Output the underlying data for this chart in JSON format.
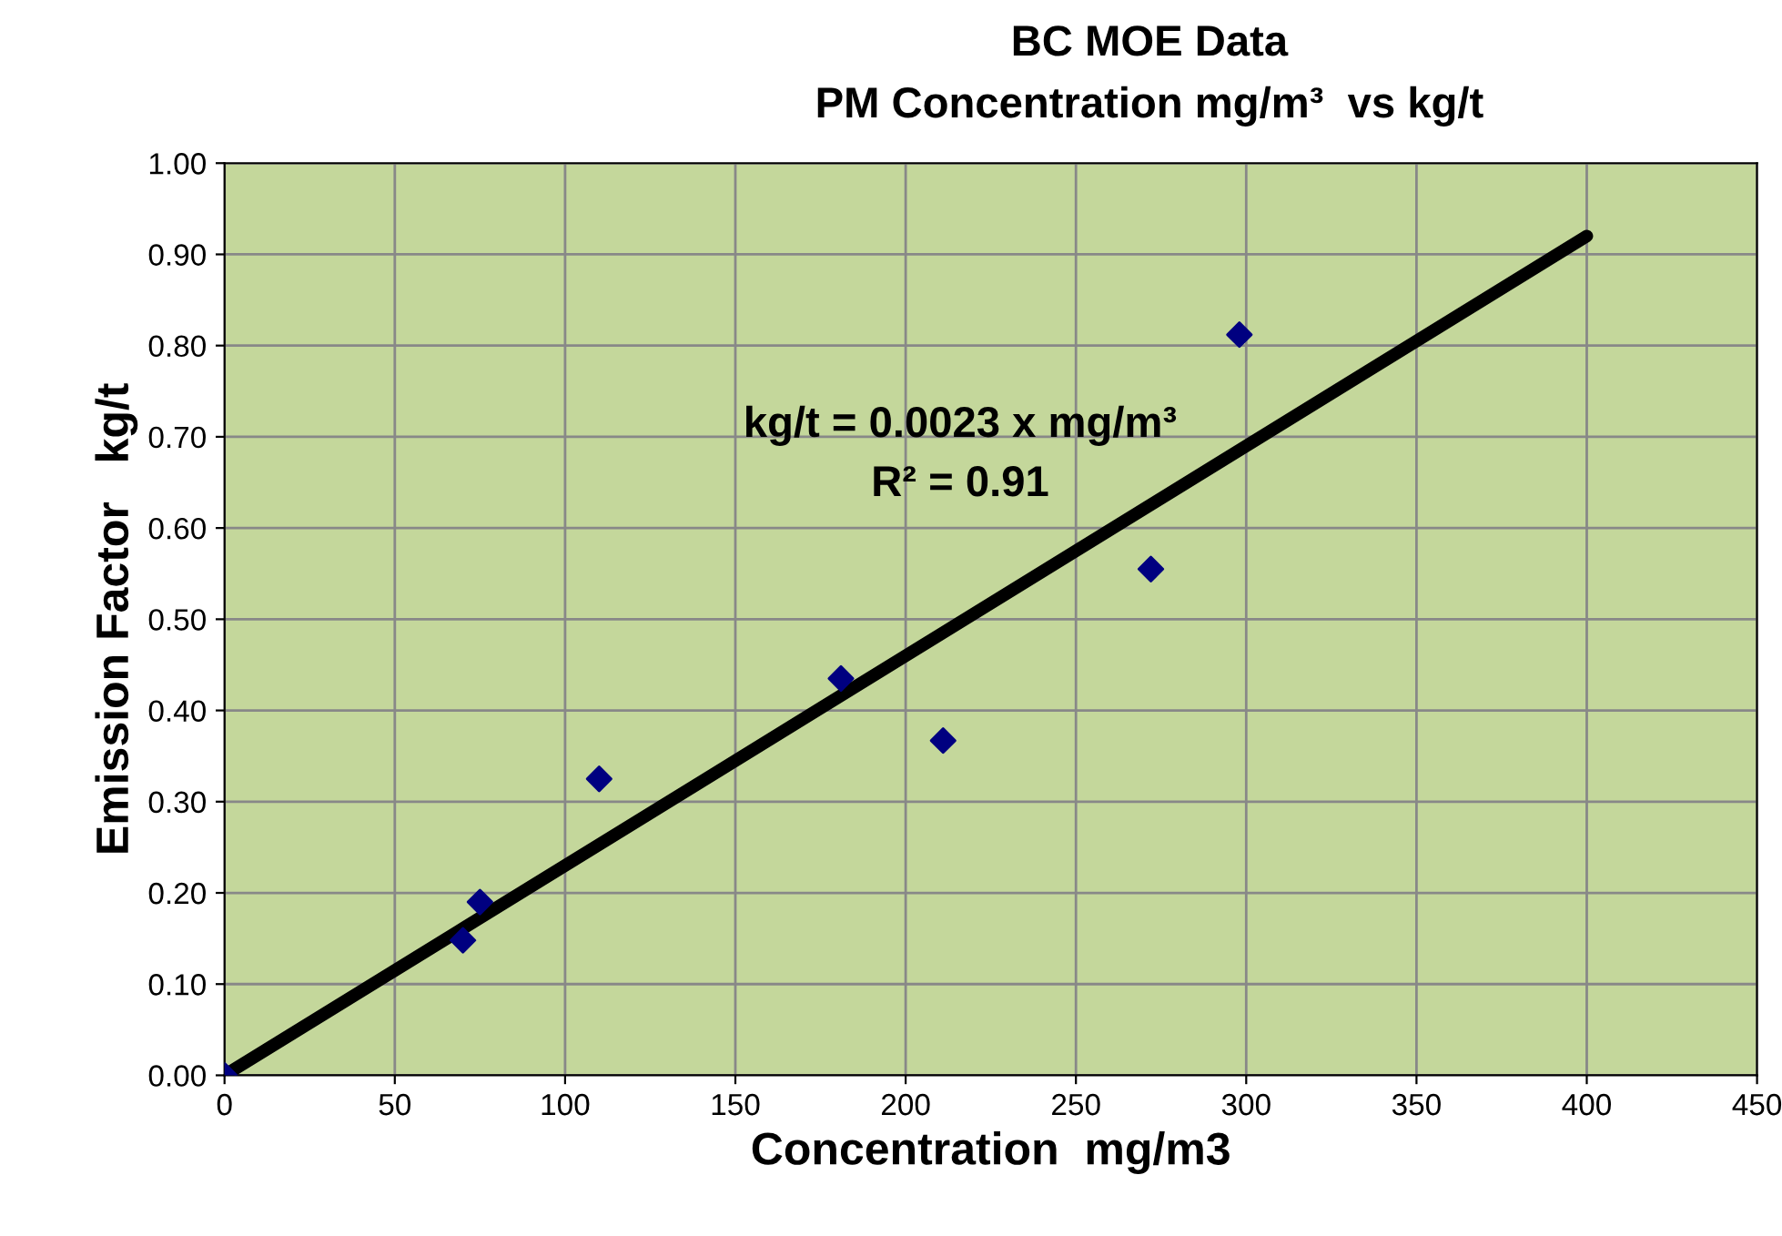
{
  "chart_data": {
    "type": "scatter",
    "title": "BC MOE Data",
    "subtitle": "PM Concentration mg/m³  vs kg/t",
    "xlabel": "Concentration  mg/m3",
    "ylabel": "Emission Factor   kg/t",
    "annotations": [
      "kg/t = 0.0023 x mg/m³",
      "R² = 0.91"
    ],
    "series": [
      {
        "color": "#000080",
        "marker": "diamond",
        "x": [
          0,
          70,
          75,
          110,
          181,
          211,
          272,
          298
        ],
        "values": [
          0,
          0.148,
          0.19,
          0.325,
          0.435,
          0.367,
          0.555,
          0.812
        ]
      },
      {
        "type": "line",
        "color": "#000000",
        "marker": "none",
        "line_style": "solid",
        "x": [
          0,
          400
        ],
        "values": [
          0,
          0.92
        ]
      }
    ],
    "xlim": [
      0,
      450
    ],
    "xticks": [
      0,
      50,
      100,
      150,
      200,
      250,
      300,
      350,
      400,
      450
    ],
    "ylim": [
      0,
      1
    ],
    "yticks": [
      {
        "value": 0,
        "label": "0.00"
      },
      {
        "value": 0.1,
        "label": "0.10"
      },
      {
        "value": 0.2,
        "label": "0.20"
      },
      {
        "value": 0.3,
        "label": "0.30"
      },
      {
        "value": 0.4,
        "label": "0.40"
      },
      {
        "value": 0.5,
        "label": "0.50"
      },
      {
        "value": 0.6,
        "label": "0.60"
      },
      {
        "value": 0.7,
        "label": "0.70"
      },
      {
        "value": 0.8,
        "label": "0.80"
      },
      {
        "value": 0.9,
        "label": "0.90"
      },
      {
        "value": 1,
        "label": "1.00"
      }
    ],
    "grid": true,
    "legend": false
  }
}
